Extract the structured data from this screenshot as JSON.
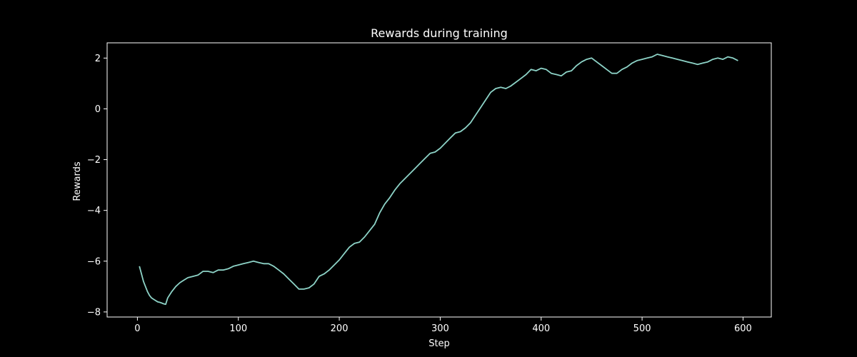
{
  "chart_data": {
    "type": "line",
    "title": "Rewards during training",
    "xlabel": "Step",
    "ylabel": "Rewards",
    "xlim": [
      -30,
      628
    ],
    "ylim": [
      -8.2,
      2.6
    ],
    "xticks": [
      0,
      100,
      200,
      300,
      400,
      500,
      600
    ],
    "yticks": [
      -8,
      -6,
      -4,
      -2,
      0,
      2
    ],
    "grid": false,
    "legend": "none",
    "colors": {
      "background": "#000000",
      "axes": "#ffffff",
      "text": "#ffffff",
      "line": "#8dd3c7"
    },
    "series": [
      {
        "x": [
          2,
          4,
          6,
          8,
          10,
          12,
          14,
          16,
          18,
          20,
          22,
          24,
          26,
          28,
          30,
          34,
          38,
          42,
          46,
          50,
          55,
          60,
          65,
          70,
          75,
          80,
          85,
          90,
          95,
          100,
          105,
          110,
          115,
          120,
          125,
          130,
          135,
          140,
          145,
          150,
          155,
          160,
          165,
          170,
          175,
          180,
          185,
          190,
          195,
          200,
          205,
          210,
          215,
          220,
          225,
          230,
          235,
          240,
          245,
          250,
          255,
          260,
          265,
          270,
          275,
          280,
          285,
          290,
          295,
          300,
          305,
          310,
          315,
          320,
          325,
          330,
          335,
          340,
          345,
          350,
          355,
          360,
          365,
          370,
          375,
          380,
          385,
          390,
          395,
          400,
          405,
          410,
          415,
          420,
          425,
          430,
          435,
          440,
          445,
          450,
          455,
          460,
          465,
          470,
          475,
          480,
          485,
          490,
          495,
          500,
          505,
          510,
          515,
          520,
          525,
          530,
          535,
          540,
          545,
          550,
          555,
          560,
          565,
          570,
          575,
          580,
          585,
          590,
          595
        ],
        "y": [
          -6.2,
          -6.5,
          -6.8,
          -7.0,
          -7.2,
          -7.35,
          -7.45,
          -7.5,
          -7.55,
          -7.6,
          -7.62,
          -7.65,
          -7.68,
          -7.7,
          -7.45,
          -7.2,
          -7.0,
          -6.85,
          -6.75,
          -6.65,
          -6.6,
          -6.55,
          -6.4,
          -6.4,
          -6.45,
          -6.35,
          -6.35,
          -6.3,
          -6.2,
          -6.15,
          -6.1,
          -6.05,
          -6.0,
          -6.05,
          -6.1,
          -6.1,
          -6.2,
          -6.35,
          -6.5,
          -6.7,
          -6.9,
          -7.1,
          -7.1,
          -7.05,
          -6.9,
          -6.6,
          -6.5,
          -6.35,
          -6.15,
          -5.95,
          -5.7,
          -5.45,
          -5.3,
          -5.25,
          -5.05,
          -4.8,
          -4.55,
          -4.1,
          -3.75,
          -3.5,
          -3.2,
          -2.95,
          -2.75,
          -2.55,
          -2.35,
          -2.15,
          -1.95,
          -1.75,
          -1.7,
          -1.55,
          -1.35,
          -1.15,
          -0.95,
          -0.9,
          -0.75,
          -0.55,
          -0.25,
          0.05,
          0.35,
          0.65,
          0.8,
          0.85,
          0.8,
          0.9,
          1.05,
          1.2,
          1.35,
          1.55,
          1.5,
          1.6,
          1.55,
          1.4,
          1.35,
          1.3,
          1.45,
          1.5,
          1.7,
          1.85,
          1.95,
          2.0,
          1.85,
          1.7,
          1.55,
          1.4,
          1.4,
          1.55,
          1.65,
          1.8,
          1.9,
          1.95,
          2.0,
          2.05,
          2.15,
          2.1,
          2.05,
          2.0,
          1.95,
          1.9,
          1.85,
          1.8,
          1.75,
          1.8,
          1.85,
          1.95,
          2.0,
          1.95,
          2.05,
          2.0,
          1.9
        ]
      }
    ]
  }
}
